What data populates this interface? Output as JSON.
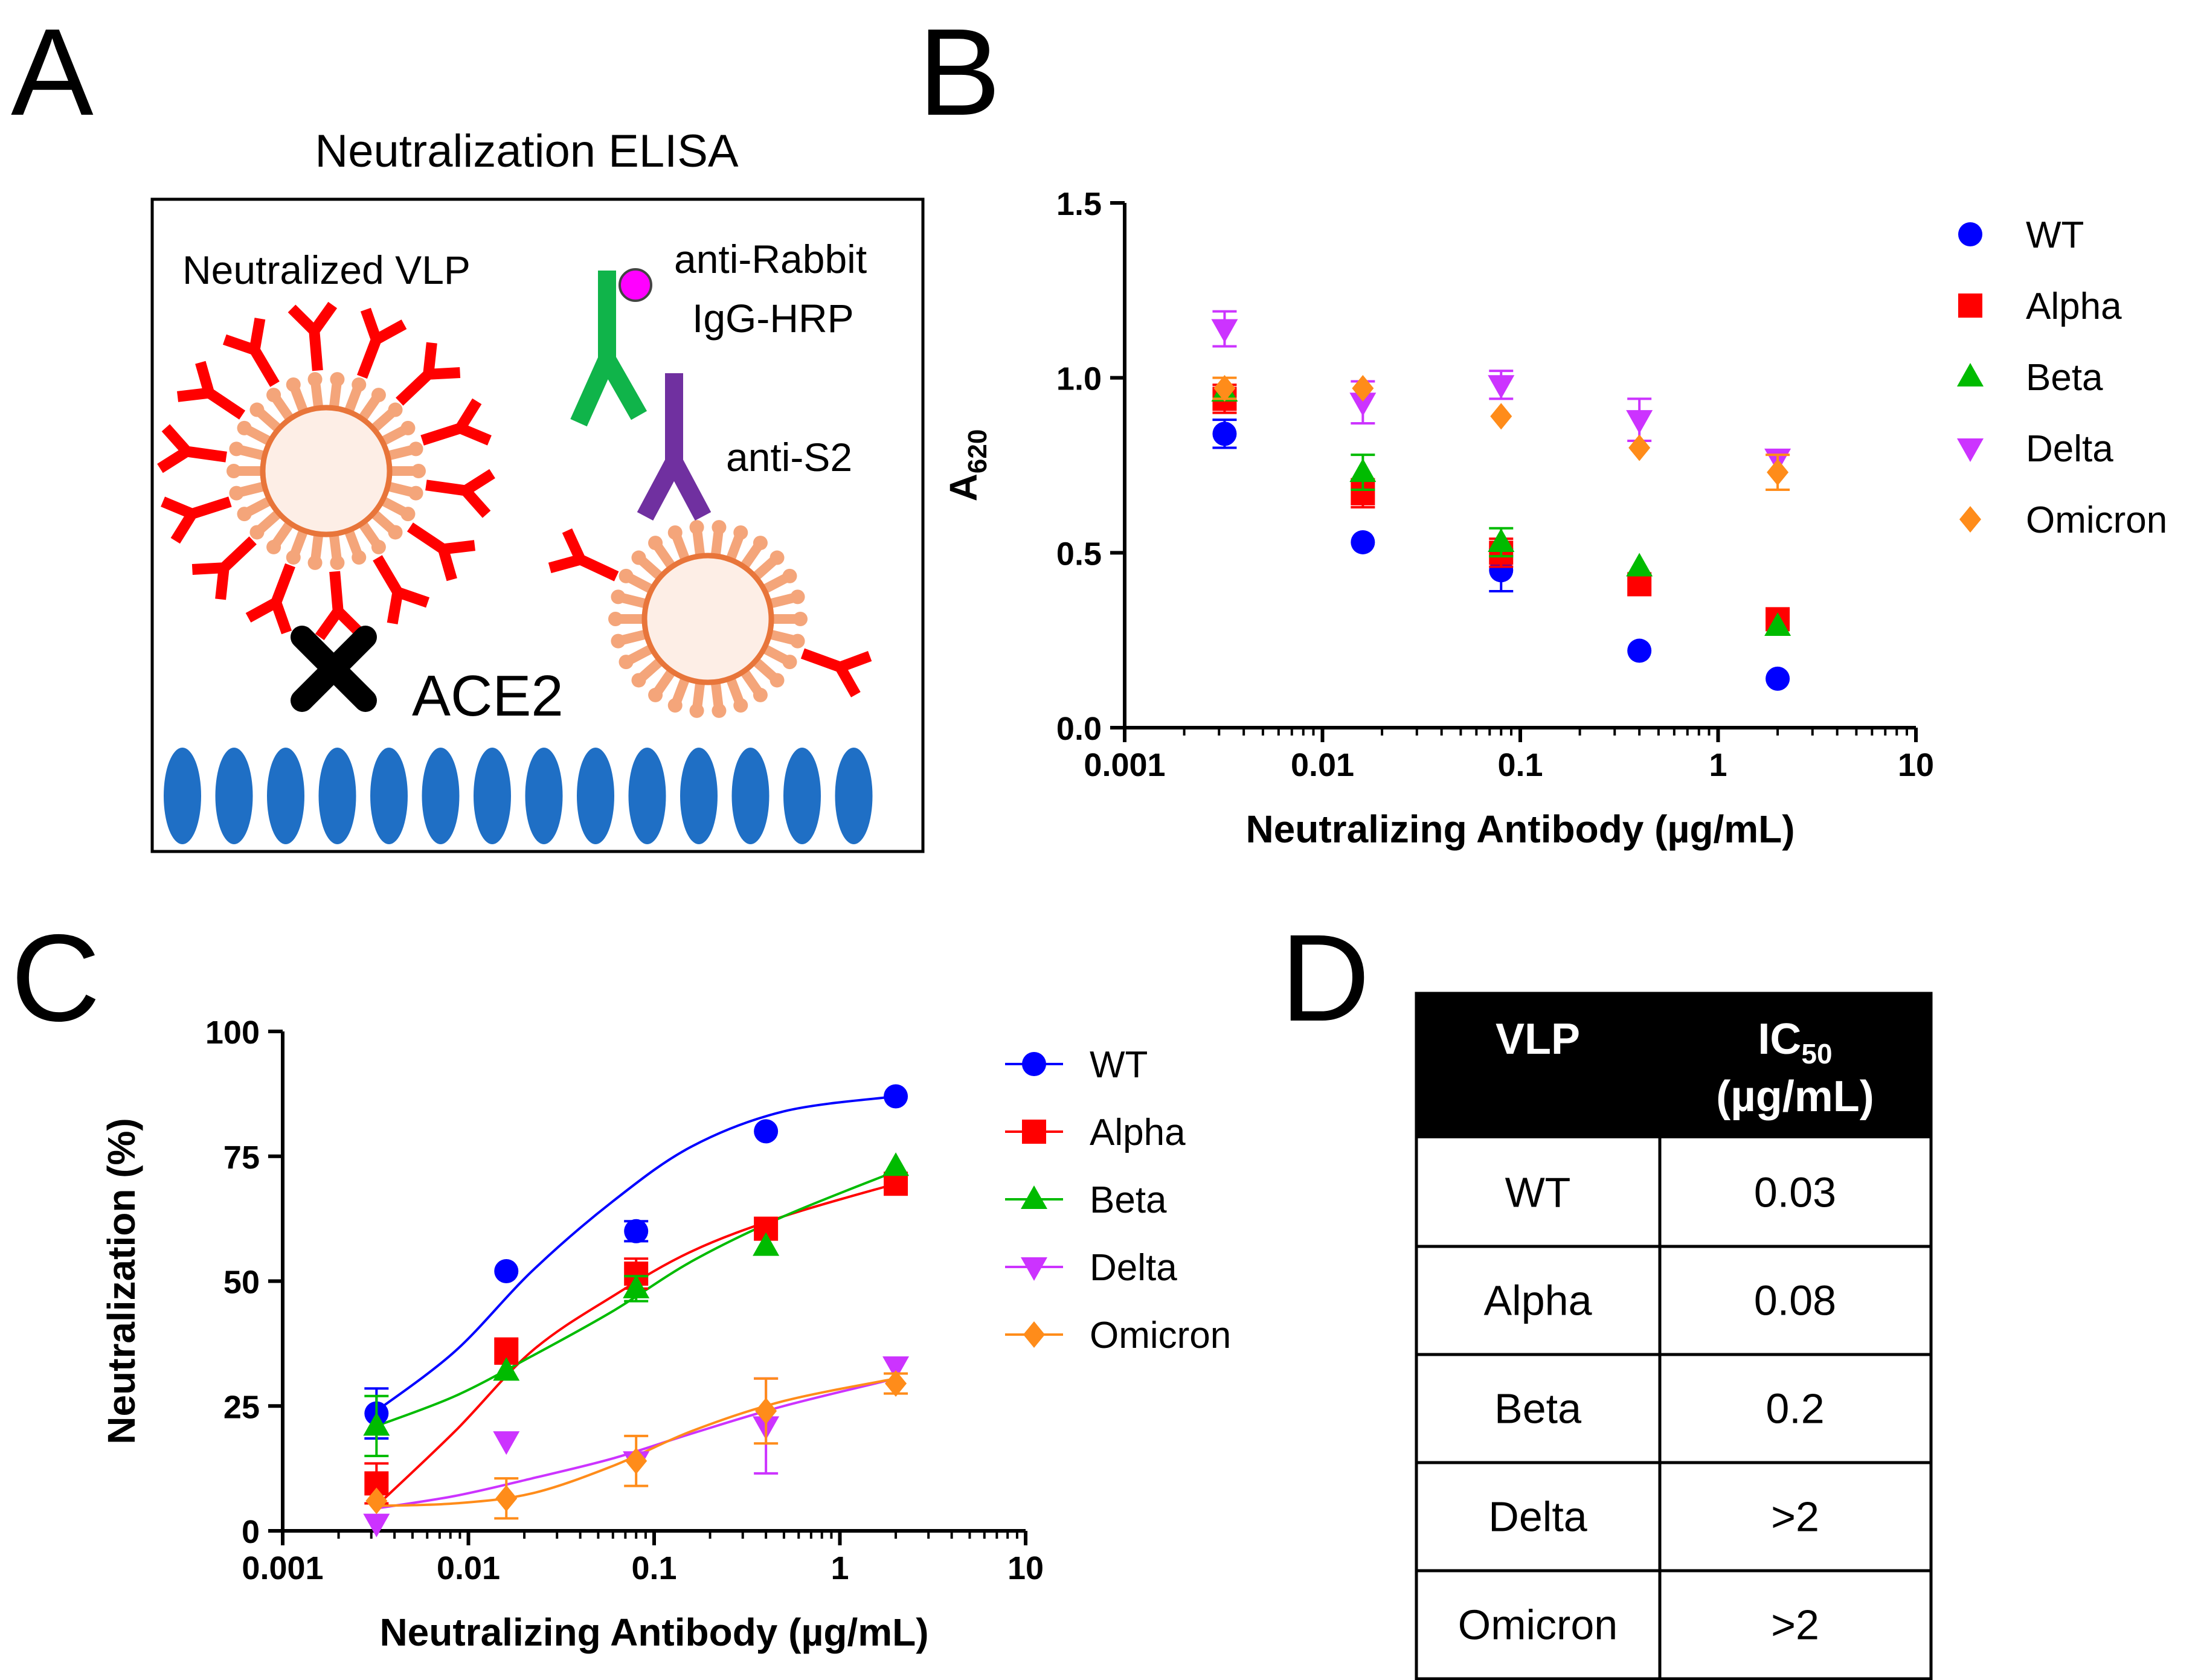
{
  "panel_letters": [
    "A",
    "B",
    "C",
    "D"
  ],
  "panel_a": {
    "title": "Neutralization  ELISA",
    "neutralized_label": "Neutralized VLP",
    "anti_rabbit_line1": "anti-Rabbit",
    "anti_rabbit_line2": "IgG-HRP",
    "anti_s2_label": "anti-S2",
    "ace2_label": "ACE2",
    "colors": {
      "antibody": "#ff0000",
      "spike": "#f4a57a",
      "vlp_ring": "#e8753a",
      "vlp_fill": "#fdeee6",
      "receptor": "#1f6fc5",
      "secondary_ab": "#10b44a",
      "hrp": "#ff00ff",
      "anti_s2": "#7030a0"
    }
  },
  "chart_data": [
    {
      "panel": "B",
      "type": "scatter",
      "xscale": "log",
      "xlim": [
        0.001,
        10
      ],
      "ylim": [
        0.0,
        1.5
      ],
      "xticks": [
        "0.001",
        "0.01",
        "0.1",
        "1",
        "10"
      ],
      "yticks": [
        "0.0",
        "0.5",
        "1.0",
        "1.5"
      ],
      "xlabel": "Neutralizing Antibody (µg/mL)",
      "ylabel_main": "A",
      "ylabel_sub": "620",
      "legend_position": "right",
      "x": [
        0.0032,
        0.016,
        0.08,
        0.4,
        2.0
      ],
      "series": [
        {
          "name": "WT",
          "marker": "circle",
          "color": "#0000ff",
          "values": [
            0.84,
            0.53,
            0.45,
            0.22,
            0.14
          ],
          "errors": [
            0.04,
            0.0,
            0.06,
            0.0,
            0.0
          ]
        },
        {
          "name": "Alpha",
          "marker": "square",
          "color": "#ff0000",
          "values": [
            0.94,
            0.67,
            0.5,
            0.41,
            0.31
          ],
          "errors": [
            0.04,
            0.04,
            0.04,
            0.0,
            0.0
          ]
        },
        {
          "name": "Beta",
          "marker": "triangle-up",
          "color": "#00bb00",
          "values": [
            0.96,
            0.73,
            0.53,
            0.46,
            0.29
          ],
          "errors": [
            0.0,
            0.05,
            0.04,
            0.0,
            0.0
          ]
        },
        {
          "name": "Delta",
          "marker": "triangle-down",
          "color": "#cc33ff",
          "values": [
            1.14,
            0.93,
            0.98,
            0.88,
            0.77
          ],
          "errors": [
            0.05,
            0.06,
            0.04,
            0.06,
            0.0
          ]
        },
        {
          "name": "Omicron",
          "marker": "diamond",
          "color": "#ff8c1a",
          "values": [
            0.97,
            0.97,
            0.89,
            0.8,
            0.73
          ],
          "errors": [
            0.03,
            0.0,
            0.0,
            0.0,
            0.05
          ]
        }
      ]
    },
    {
      "panel": "C",
      "type": "line",
      "xscale": "log",
      "xlim": [
        0.001,
        10
      ],
      "ylim": [
        0,
        100
      ],
      "xticks": [
        "0.001",
        "0.01",
        "0.1",
        "1",
        "10"
      ],
      "yticks": [
        "0",
        "25",
        "50",
        "75",
        "100"
      ],
      "xlabel": "Neutralizing Antibody (µg/mL)",
      "ylabel": "Neutralization (%)",
      "legend_position": "right",
      "x": [
        0.0032,
        0.016,
        0.08,
        0.4,
        2.0
      ],
      "series": [
        {
          "name": "WT",
          "marker": "circle",
          "color": "#0000ff",
          "values": [
            23.5,
            52,
            60,
            80,
            87
          ],
          "errors": [
            5,
            0,
            2,
            0,
            0
          ],
          "fit": [
            24,
            36,
            52,
            66,
            77,
            84,
            87
          ]
        },
        {
          "name": "Alpha",
          "marker": "square",
          "color": "#ff0000",
          "values": [
            9.5,
            36,
            51.5,
            60.5,
            69.5
          ],
          "errors": [
            4,
            2.5,
            3,
            0,
            0
          ],
          "fit": [
            5,
            20,
            36,
            47,
            56,
            63,
            69.5
          ]
        },
        {
          "name": "Beta",
          "marker": "triangle-up",
          "color": "#00bb00",
          "values": [
            21,
            32,
            48.5,
            57,
            73
          ],
          "errors": [
            6,
            0,
            2.5,
            0,
            0
          ],
          "fit": [
            21,
            27,
            35,
            44,
            54,
            63,
            72
          ]
        },
        {
          "name": "Delta",
          "marker": "triangle-down",
          "color": "#cc33ff",
          "values": [
            1.5,
            18,
            14,
            21,
            33
          ],
          "errors": [
            0,
            0,
            0,
            9.5,
            0
          ],
          "fit": [
            4.5,
            7,
            10.5,
            14.5,
            19.5,
            25,
            30.5
          ]
        },
        {
          "name": "Omicron",
          "marker": "diamond",
          "color": "#ff8c1a",
          "values": [
            6,
            6.5,
            14,
            24,
            29.5
          ],
          "errors": [
            0,
            4,
            5,
            6.5,
            2
          ],
          "fit": [
            5,
            5.5,
            7.5,
            13,
            20,
            26,
            30.5
          ]
        }
      ],
      "fit_x": [
        0.0032,
        0.0085,
        0.022,
        0.06,
        0.16,
        0.5,
        2.0
      ]
    }
  ],
  "panel_d": {
    "type": "table",
    "headers": [
      "VLP",
      "IC",
      "50",
      "(µg/mL)"
    ],
    "rows": [
      [
        "WT",
        "0.03"
      ],
      [
        "Alpha",
        "0.08"
      ],
      [
        "Beta",
        "0.2"
      ],
      [
        "Delta",
        ">2"
      ],
      [
        "Omicron",
        ">2"
      ]
    ]
  }
}
